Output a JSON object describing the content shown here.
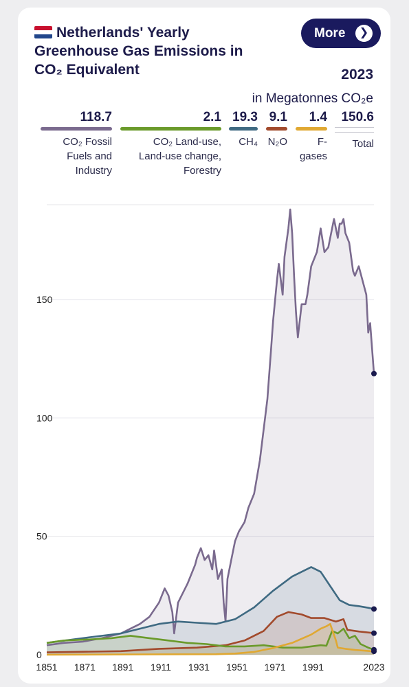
{
  "header": {
    "title": "Netherlands' Yearly Greenhouse Gas Emissions in CO₂ Equivalent",
    "more_label": "More",
    "more_icon": "chevron-right-icon",
    "year": "2023",
    "unit": "in Megatonnes CO₂e"
  },
  "legend": [
    {
      "value": "118.7",
      "label": "CO₂ Fossil Fuels and Industry",
      "color": "#7a6a8e"
    },
    {
      "value": "2.1",
      "label": "CO₂ Land-use, Land-use change, Forestry",
      "color": "#6a9a2a"
    },
    {
      "value": "19.3",
      "label": "CH₄",
      "color": "#3f6a82"
    },
    {
      "value": "9.1",
      "label": "N₂O",
      "color": "#a24a2c"
    },
    {
      "value": "1.4",
      "label": "F-gases",
      "color": "#e0a832"
    },
    {
      "value": "150.6",
      "label": "Total",
      "color": "#c8c8d0"
    }
  ],
  "chart_data": {
    "type": "area",
    "x_ticks": [
      "1851",
      "1871",
      "1891",
      "1911",
      "1931",
      "1951",
      "1971",
      "1991",
      "2023"
    ],
    "y_ticks": [
      "0",
      "50",
      "100",
      "150"
    ],
    "xlim": [
      1851,
      2023
    ],
    "ylim": [
      0,
      190
    ],
    "grid": true,
    "series": [
      {
        "name": "CO₂ Fossil Fuels and Industry",
        "color": "#7a6a8e",
        "points": [
          [
            1851,
            4
          ],
          [
            1860,
            5
          ],
          [
            1870,
            5.5
          ],
          [
            1880,
            7
          ],
          [
            1890,
            9
          ],
          [
            1895,
            11
          ],
          [
            1900,
            13
          ],
          [
            1905,
            16
          ],
          [
            1910,
            22
          ],
          [
            1913,
            28
          ],
          [
            1915,
            25
          ],
          [
            1917,
            18
          ],
          [
            1918,
            9
          ],
          [
            1920,
            22
          ],
          [
            1925,
            30
          ],
          [
            1929,
            38
          ],
          [
            1930,
            41
          ],
          [
            1932,
            45
          ],
          [
            1934,
            40
          ],
          [
            1936,
            42
          ],
          [
            1938,
            36
          ],
          [
            1939,
            44
          ],
          [
            1941,
            32
          ],
          [
            1943,
            36
          ],
          [
            1944,
            22
          ],
          [
            1945,
            14
          ],
          [
            1946,
            32
          ],
          [
            1948,
            40
          ],
          [
            1950,
            48
          ],
          [
            1952,
            52
          ],
          [
            1955,
            56
          ],
          [
            1957,
            62
          ],
          [
            1960,
            68
          ],
          [
            1963,
            82
          ],
          [
            1965,
            95
          ],
          [
            1967,
            108
          ],
          [
            1969,
            130
          ],
          [
            1970,
            141
          ],
          [
            1972,
            158
          ],
          [
            1973,
            165
          ],
          [
            1975,
            152
          ],
          [
            1976,
            168
          ],
          [
            1978,
            180
          ],
          [
            1979,
            188
          ],
          [
            1980,
            178
          ],
          [
            1981,
            160
          ],
          [
            1982,
            145
          ],
          [
            1983,
            134
          ],
          [
            1985,
            148
          ],
          [
            1987,
            148
          ],
          [
            1988,
            152
          ],
          [
            1990,
            164
          ],
          [
            1993,
            170
          ],
          [
            1995,
            180
          ],
          [
            1997,
            170
          ],
          [
            1999,
            172
          ],
          [
            2001,
            180
          ],
          [
            2002,
            184
          ],
          [
            2004,
            176
          ],
          [
            2005,
            182
          ],
          [
            2006,
            182
          ],
          [
            2007,
            184
          ],
          [
            2008,
            178
          ],
          [
            2010,
            174
          ],
          [
            2012,
            162
          ],
          [
            2013,
            160
          ],
          [
            2015,
            164
          ],
          [
            2017,
            158
          ],
          [
            2019,
            152
          ],
          [
            2020,
            136
          ],
          [
            2021,
            140
          ],
          [
            2023,
            118.7
          ]
        ]
      },
      {
        "name": "CH₄",
        "color": "#3f6a82",
        "points": [
          [
            1851,
            5
          ],
          [
            1870,
            7
          ],
          [
            1890,
            9
          ],
          [
            1910,
            13
          ],
          [
            1920,
            14
          ],
          [
            1930,
            13.5
          ],
          [
            1940,
            13
          ],
          [
            1950,
            15
          ],
          [
            1960,
            20
          ],
          [
            1970,
            27
          ],
          [
            1980,
            33
          ],
          [
            1990,
            37
          ],
          [
            1995,
            35
          ],
          [
            2000,
            29
          ],
          [
            2005,
            23
          ],
          [
            2010,
            21
          ],
          [
            2015,
            20.5
          ],
          [
            2020,
            19.8
          ],
          [
            2023,
            19.3
          ]
        ]
      },
      {
        "name": "N₂O",
        "color": "#a24a2c",
        "points": [
          [
            1851,
            1
          ],
          [
            1890,
            1.5
          ],
          [
            1910,
            2.5
          ],
          [
            1930,
            3
          ],
          [
            1945,
            4
          ],
          [
            1955,
            6
          ],
          [
            1965,
            10
          ],
          [
            1972,
            16
          ],
          [
            1978,
            18
          ],
          [
            1985,
            17
          ],
          [
            1990,
            15.5
          ],
          [
            1997,
            15.5
          ],
          [
            2003,
            14
          ],
          [
            2007,
            15
          ],
          [
            2009,
            10.5
          ],
          [
            2015,
            9.8
          ],
          [
            2023,
            9.1
          ]
        ]
      },
      {
        "name": "CO₂ Land-use, Land-use change, Forestry",
        "color": "#6a9a2a",
        "points": [
          [
            1851,
            5
          ],
          [
            1860,
            6
          ],
          [
            1875,
            6.5
          ],
          [
            1885,
            7
          ],
          [
            1895,
            8
          ],
          [
            1905,
            7
          ],
          [
            1915,
            6
          ],
          [
            1925,
            5
          ],
          [
            1935,
            4.5
          ],
          [
            1945,
            3.5
          ],
          [
            1955,
            3.5
          ],
          [
            1965,
            4
          ],
          [
            1975,
            3
          ],
          [
            1985,
            3
          ],
          [
            1990,
            3.5
          ],
          [
            1995,
            4
          ],
          [
            1998,
            3.8
          ],
          [
            2001,
            10
          ],
          [
            2004,
            9
          ],
          [
            2007,
            11
          ],
          [
            2010,
            7
          ],
          [
            2013,
            8
          ],
          [
            2016,
            4.5
          ],
          [
            2020,
            3
          ],
          [
            2023,
            2.1
          ]
        ]
      },
      {
        "name": "F-gases",
        "color": "#e0a832",
        "points": [
          [
            1851,
            0
          ],
          [
            1940,
            0.2
          ],
          [
            1950,
            0.5
          ],
          [
            1960,
            1.2
          ],
          [
            1970,
            2.8
          ],
          [
            1980,
            5
          ],
          [
            1990,
            8.5
          ],
          [
            1995,
            11
          ],
          [
            1998,
            12
          ],
          [
            2000,
            13
          ],
          [
            2003,
            6
          ],
          [
            2004,
            3
          ],
          [
            2008,
            2.5
          ],
          [
            2013,
            2
          ],
          [
            2018,
            1.7
          ],
          [
            2023,
            1.4
          ]
        ]
      }
    ]
  }
}
